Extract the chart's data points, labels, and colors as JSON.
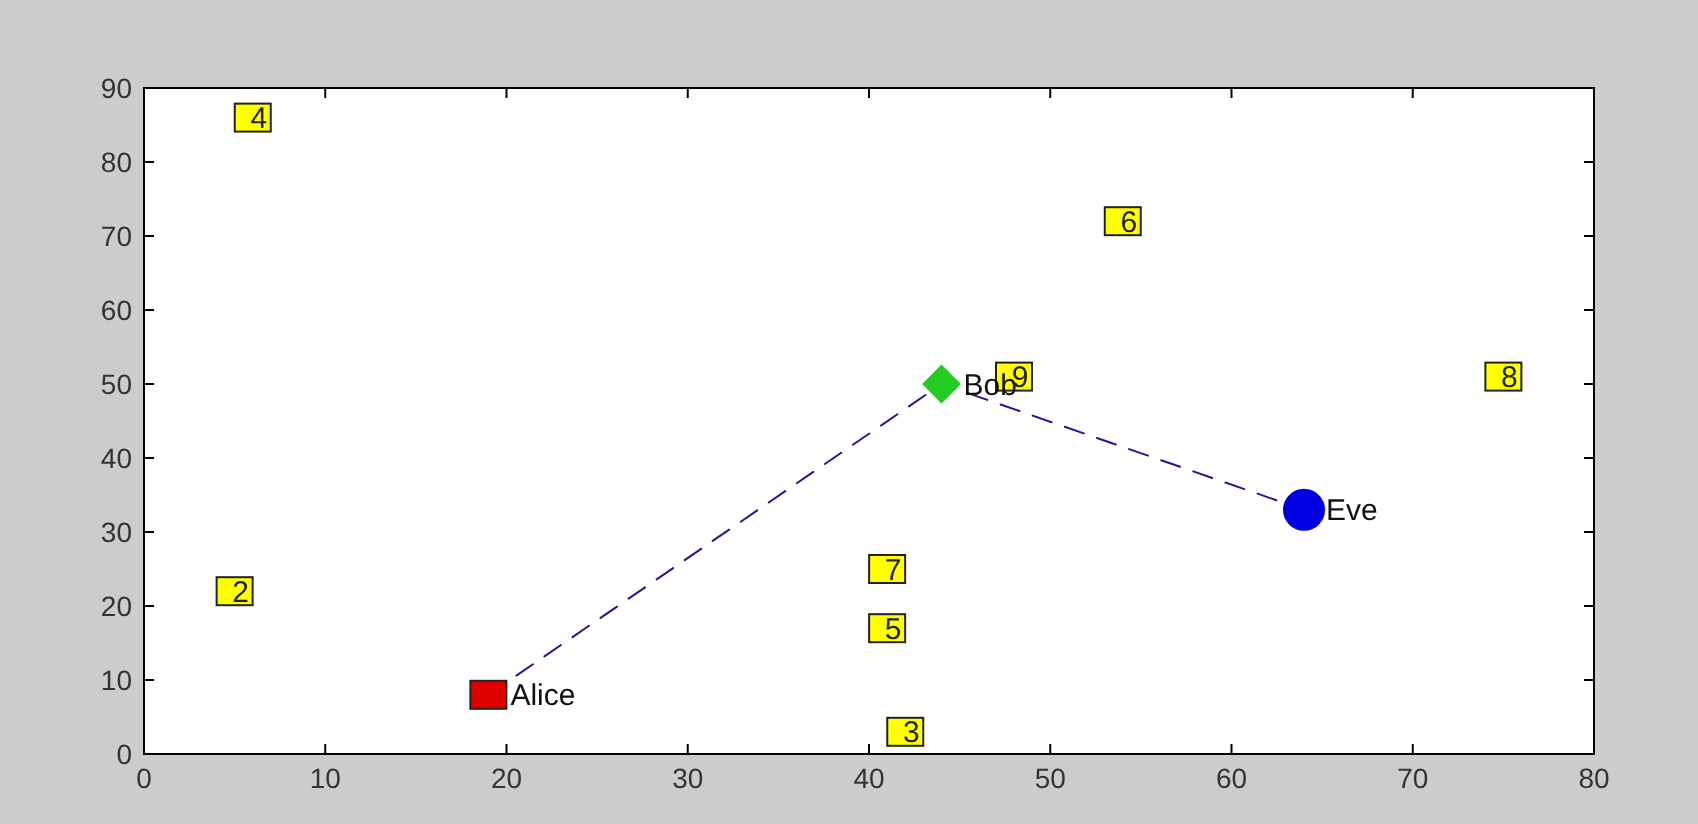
{
  "chart_data": {
    "type": "scatter",
    "xlim": [
      0,
      80
    ],
    "ylim": [
      0,
      90
    ],
    "xticks": [
      0,
      10,
      20,
      30,
      40,
      50,
      60,
      70,
      80
    ],
    "yticks": [
      0,
      10,
      20,
      30,
      40,
      50,
      60,
      70,
      80,
      90
    ],
    "grid": false,
    "series": [
      {
        "type": "line",
        "color": "#1a1a9e",
        "line_style": "dashed",
        "marker": "none",
        "x": [
          19,
          44,
          64
        ],
        "values": [
          8,
          50,
          33
        ]
      },
      {
        "color": "#ffff00",
        "marker": "square",
        "x": [
          5,
          42,
          6,
          41,
          54,
          41,
          75,
          48
        ],
        "values": [
          22,
          3,
          86,
          17,
          72,
          25,
          51,
          51
        ]
      },
      {
        "name": "Alice",
        "color": "#e00000",
        "marker": "square",
        "x": [
          19
        ],
        "values": [
          8
        ]
      },
      {
        "name": "Bob",
        "color": "#22cc22",
        "marker": "diamond",
        "x": [
          44
        ],
        "values": [
          50
        ]
      },
      {
        "name": "Eve",
        "color": "#0000e0",
        "marker": "circle",
        "x": [
          64
        ],
        "values": [
          33
        ]
      }
    ],
    "annotations": [
      {
        "text": "2",
        "x": 5,
        "y": 22
      },
      {
        "text": "3",
        "x": 42,
        "y": 3
      },
      {
        "text": "4",
        "x": 6,
        "y": 86
      },
      {
        "text": "5",
        "x": 41,
        "y": 17
      },
      {
        "text": "6",
        "x": 54,
        "y": 72
      },
      {
        "text": "7",
        "x": 41,
        "y": 25
      },
      {
        "text": "8",
        "x": 75,
        "y": 51
      },
      {
        "text": "9",
        "x": 48,
        "y": 51
      }
    ]
  }
}
